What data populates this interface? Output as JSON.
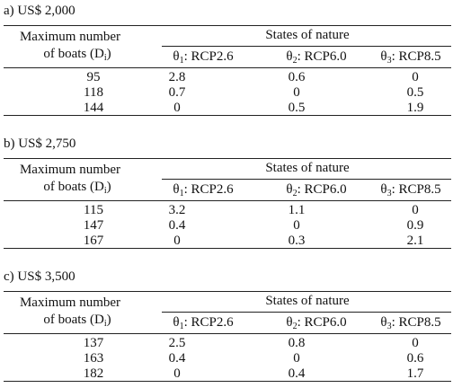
{
  "tables": [
    {
      "title": "a) US$ 2,000",
      "stub_header": {
        "line1": "Maximum number",
        "line2": "of boats (D",
        "sub": "i",
        "close": ")"
      },
      "group_header": "States of nature",
      "columns": [
        {
          "symbol": "θ",
          "sub": "1",
          "label": ": RCP2.6"
        },
        {
          "symbol": "θ",
          "sub": "2",
          "label": ": RCP6.0"
        },
        {
          "symbol": "θ",
          "sub": "3",
          "label": ": RCP8.5"
        }
      ],
      "rows": [
        {
          "boats": 95,
          "values": [
            2.8,
            0.6,
            0
          ]
        },
        {
          "boats": 118,
          "values": [
            0.7,
            0,
            0.5
          ]
        },
        {
          "boats": 144,
          "values": [
            0,
            0.5,
            1.9
          ]
        }
      ]
    },
    {
      "title": "b) US$ 2,750",
      "stub_header": {
        "line1": "Maximum number",
        "line2": "of boats (D",
        "sub": "i",
        "close": ")"
      },
      "group_header": "States of nature",
      "columns": [
        {
          "symbol": "θ",
          "sub": "1",
          "label": ": RCP2.6"
        },
        {
          "symbol": "θ",
          "sub": "2",
          "label": ": RCP6.0"
        },
        {
          "symbol": "θ",
          "sub": "3",
          "label": ": RCP8.5"
        }
      ],
      "rows": [
        {
          "boats": 115,
          "values": [
            3.2,
            1.1,
            0
          ]
        },
        {
          "boats": 147,
          "values": [
            0.4,
            0,
            0.9
          ]
        },
        {
          "boats": 167,
          "values": [
            0,
            0.3,
            2.1
          ]
        }
      ]
    },
    {
      "title": "c) US$ 3,500",
      "stub_header": {
        "line1": "Maximum number",
        "line2": "of boats (D",
        "sub": "i",
        "close": ")"
      },
      "group_header": "States of nature",
      "columns": [
        {
          "symbol": "θ",
          "sub": "1",
          "label": ": RCP2.6"
        },
        {
          "symbol": "θ",
          "sub": "2",
          "label": ": RCP6.0"
        },
        {
          "symbol": "θ",
          "sub": "3",
          "label": ": RCP8.5"
        }
      ],
      "rows": [
        {
          "boats": 137,
          "values": [
            2.5,
            0.8,
            0
          ]
        },
        {
          "boats": 163,
          "values": [
            0.4,
            0,
            0.6
          ]
        },
        {
          "boats": 182,
          "values": [
            0,
            0.4,
            1.7
          ]
        }
      ]
    }
  ]
}
